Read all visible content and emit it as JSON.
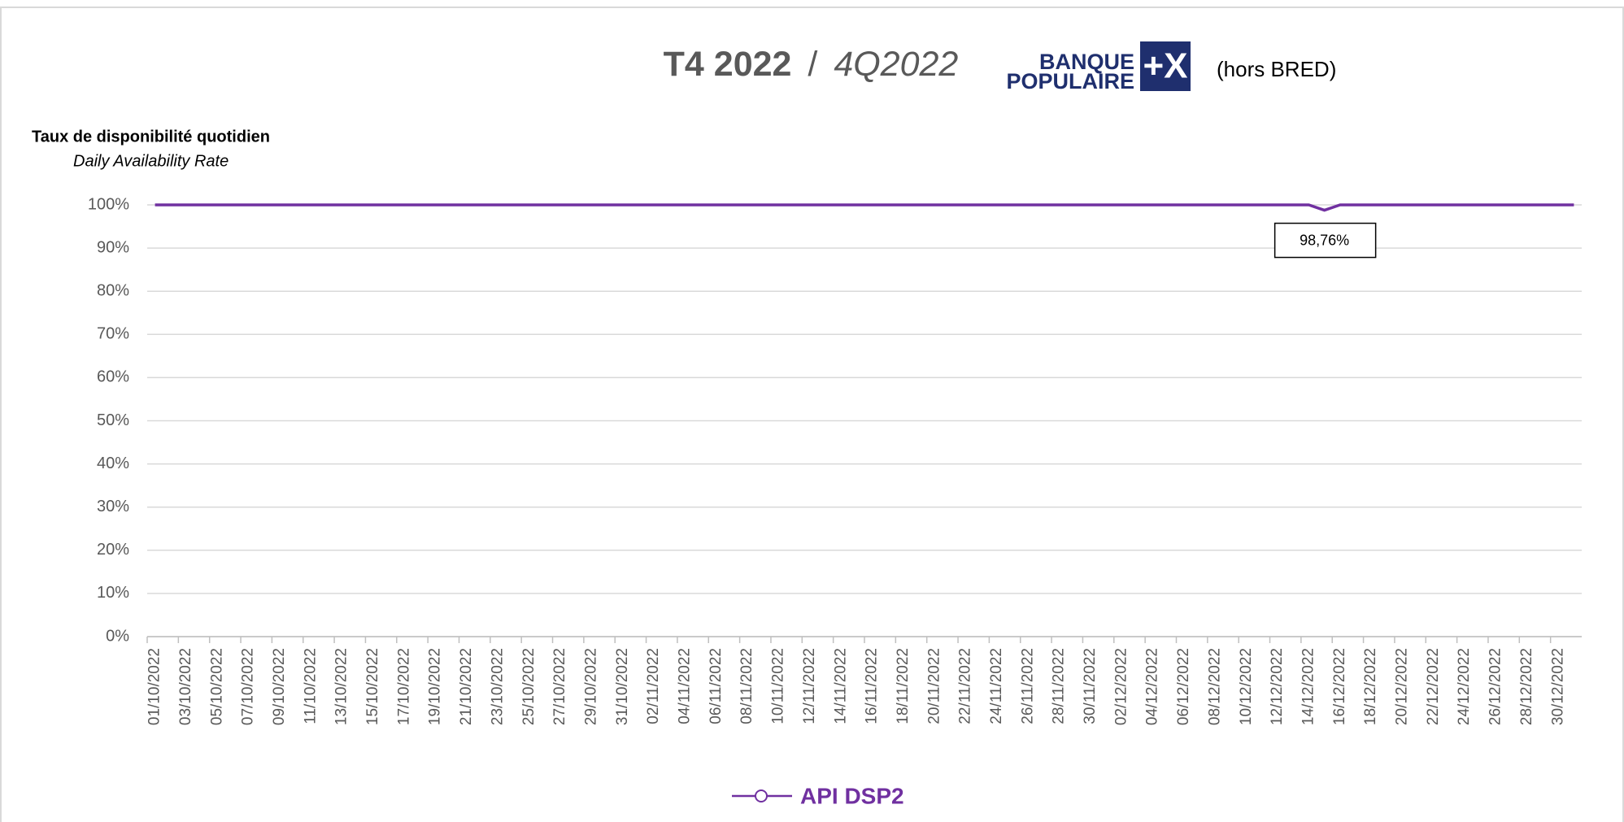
{
  "chart_data": {
    "type": "line",
    "title": "T4 2022",
    "title_separator": "/",
    "subtitle": "4Q2022",
    "brand": {
      "line1": "BANQUE",
      "line2": "POPULAIRE",
      "mark": "+X"
    },
    "note": "(hors BRED)",
    "y_axis_title": "Taux de disponibilité quotidien",
    "y_axis_subtitle": "Daily Availability Rate",
    "categories": [
      "01/10/2022",
      null,
      "03/10/2022",
      null,
      "05/10/2022",
      null,
      "07/10/2022",
      null,
      "09/10/2022",
      null,
      "11/10/2022",
      null,
      "13/10/2022",
      null,
      "15/10/2022",
      null,
      "17/10/2022",
      null,
      "19/10/2022",
      null,
      "21/10/2022",
      null,
      "23/10/2022",
      null,
      "25/10/2022",
      null,
      "27/10/2022",
      null,
      "29/10/2022",
      null,
      "31/10/2022",
      null,
      "02/11/2022",
      null,
      "04/11/2022",
      null,
      "06/11/2022",
      null,
      "08/11/2022",
      null,
      "10/11/2022",
      null,
      "12/11/2022",
      null,
      "14/11/2022",
      null,
      "16/11/2022",
      null,
      "18/11/2022",
      null,
      "20/11/2022",
      null,
      "22/11/2022",
      null,
      "24/11/2022",
      null,
      "26/11/2022",
      null,
      "28/11/2022",
      null,
      "30/11/2022",
      null,
      "02/12/2022",
      null,
      "04/12/2022",
      null,
      "06/12/2022",
      null,
      "08/12/2022",
      null,
      "10/12/2022",
      null,
      "12/12/2022",
      null,
      "14/12/2022",
      null,
      "16/12/2022",
      null,
      "18/12/2022",
      null,
      "20/12/2022",
      null,
      "22/12/2022",
      null,
      "24/12/2022",
      null,
      "26/12/2022",
      null,
      "28/12/2022",
      null,
      "30/12/2022",
      null
    ],
    "series": [
      {
        "name": "API DSP2",
        "color": "#7030a0",
        "values": [
          100,
          100,
          100,
          100,
          100,
          100,
          100,
          100,
          100,
          100,
          100,
          100,
          100,
          100,
          100,
          100,
          100,
          100,
          100,
          100,
          100,
          100,
          100,
          100,
          100,
          100,
          100,
          100,
          100,
          100,
          100,
          100,
          100,
          100,
          100,
          100,
          100,
          100,
          100,
          100,
          100,
          100,
          100,
          100,
          100,
          100,
          100,
          100,
          100,
          100,
          100,
          100,
          100,
          100,
          100,
          100,
          100,
          100,
          100,
          100,
          100,
          100,
          100,
          100,
          100,
          100,
          100,
          100,
          100,
          100,
          100,
          100,
          100,
          100,
          100,
          98.76,
          100,
          100,
          100,
          100,
          100,
          100,
          100,
          100,
          100,
          100,
          100,
          100,
          100,
          100,
          100,
          100
        ],
        "value_labels": [
          null,
          null,
          null,
          null,
          null,
          null,
          null,
          null,
          null,
          null,
          null,
          null,
          null,
          null,
          null,
          null,
          null,
          null,
          null,
          null,
          null,
          null,
          null,
          null,
          null,
          null,
          null,
          null,
          null,
          null,
          null,
          null,
          null,
          null,
          null,
          null,
          null,
          null,
          null,
          null,
          null,
          null,
          null,
          null,
          null,
          null,
          null,
          null,
          null,
          null,
          null,
          null,
          null,
          null,
          null,
          null,
          null,
          null,
          null,
          null,
          null,
          null,
          null,
          null,
          null,
          null,
          null,
          null,
          null,
          null,
          null,
          null,
          null,
          null,
          null,
          "98,76%",
          null,
          null,
          null,
          null,
          null,
          null,
          null,
          null,
          null,
          null,
          null,
          null,
          null,
          null,
          null,
          null
        ]
      }
    ],
    "ylim": [
      0,
      100
    ],
    "yticks": [
      {
        "value": 0,
        "label": "0%"
      },
      {
        "value": 10,
        "label": "10%"
      },
      {
        "value": 20,
        "label": "20%"
      },
      {
        "value": 30,
        "label": "30%"
      },
      {
        "value": 40,
        "label": "40%"
      },
      {
        "value": 50,
        "label": "50%"
      },
      {
        "value": 60,
        "label": "60%"
      },
      {
        "value": 70,
        "label": "70%"
      },
      {
        "value": 80,
        "label": "80%"
      },
      {
        "value": 90,
        "label": "90%"
      },
      {
        "value": 100,
        "label": "100%"
      }
    ],
    "grid": true,
    "legend": "bottom"
  }
}
